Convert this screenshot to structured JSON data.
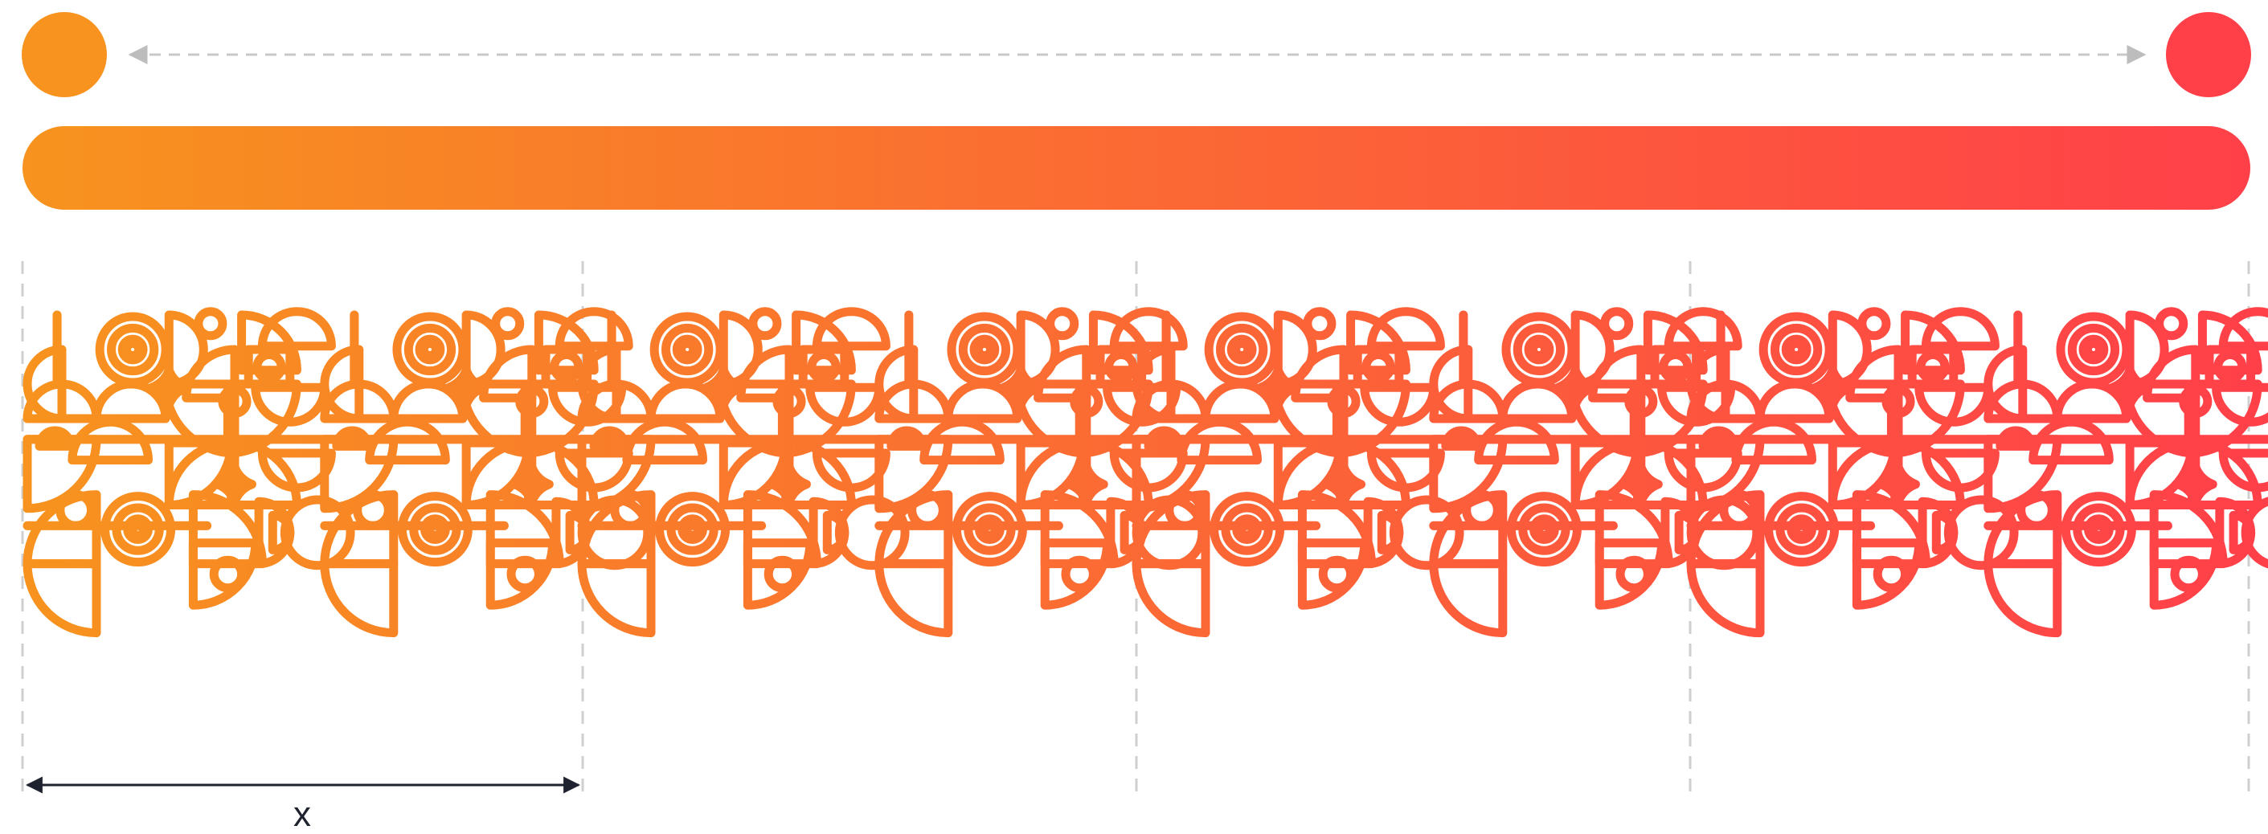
{
  "colors": {
    "start": "#F7931E",
    "end": "#FF4049",
    "guide": "#cfcfcf",
    "dimension": "#1f2330"
  },
  "legend": {
    "start_swatch": "orange-circle",
    "end_swatch": "red-circle",
    "direction_arrow": "double-headed-dashed-arrow"
  },
  "dimension": {
    "label": "x"
  },
  "pattern": {
    "repeats": 4,
    "motifs": [
      "concentric-circles",
      "half-circles",
      "quarter-circles",
      "small-circles",
      "four-point-stars",
      "squares"
    ]
  }
}
